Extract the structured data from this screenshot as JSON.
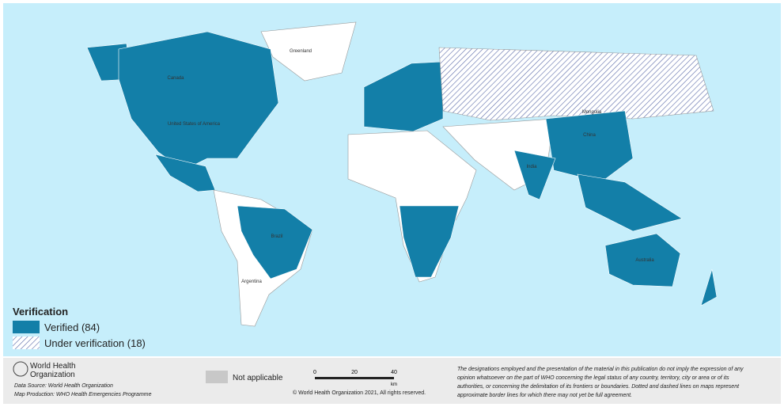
{
  "legend": {
    "title": "Verification",
    "items": [
      "Verified (84)",
      "Under verification (18)"
    ]
  },
  "map_labels": [
    "Greenland",
    "Canada",
    "United States of America",
    "Brazil",
    "Argentina",
    "Mongolia",
    "China",
    "India",
    "Australia"
  ],
  "footer": {
    "org_line1": "World Health",
    "org_line2": "Organization",
    "data_source": "Data Source: World Health Organization",
    "map_production": "Map Production: WHO Health Emergencies Programme",
    "not_applicable": "Not applicable",
    "scale": [
      "0",
      "20",
      "40",
      "km"
    ],
    "copyright": "© World Health Organization 2021, All rights reserved.",
    "disclaimer": [
      "The designations employed and the presentation of the material in this publication do not imply the expression of any",
      "opinion whatsoever on the part of WHO concerning the legal status of any country, territory, city or area or of its",
      "authorities, or concerning the delimitation of its frontiers or boundaries. Dotted and dashed lines on maps represent",
      "approximate border lines for which there may not yet be full agreement."
    ]
  }
}
